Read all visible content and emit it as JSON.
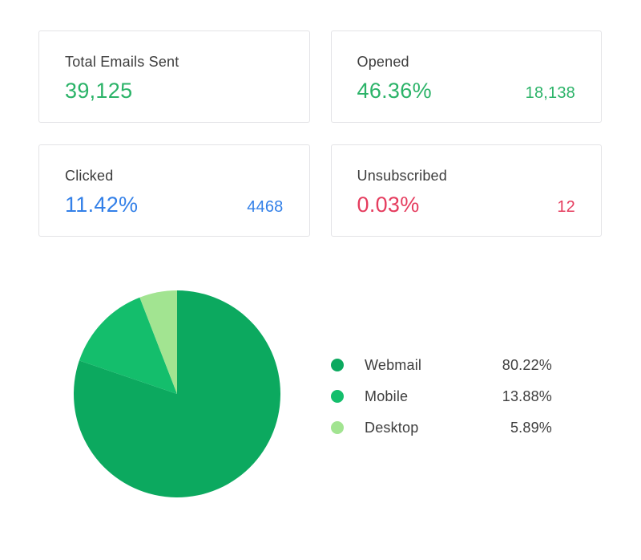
{
  "cards": [
    {
      "label": "Total Emails Sent",
      "value": "39,125",
      "count": "",
      "color": "#2bb368"
    },
    {
      "label": "Opened",
      "value": "46.36%",
      "count": "18,138",
      "color": "#2bb368"
    },
    {
      "label": "Clicked",
      "value": "11.42%",
      "count": "4468",
      "color": "#3380e8"
    },
    {
      "label": "Unsubscribed",
      "value": "0.03%",
      "count": "12",
      "color": "#e53c5e"
    }
  ],
  "colors": {
    "positive_green": "#2bb368",
    "link_blue": "#3380e8",
    "alert_red": "#e53c5e",
    "card_border": "#e3e3e6"
  },
  "chart_data": {
    "type": "pie",
    "title": "",
    "start_angle_deg": 0,
    "direction": "clockwise",
    "legend_position": "right",
    "slices": [
      {
        "label": "Webmail",
        "value": 80.22,
        "display": "80.22%",
        "color": "#0ca95f"
      },
      {
        "label": "Mobile",
        "value": 13.88,
        "display": "13.88%",
        "color": "#14be6c"
      },
      {
        "label": "Desktop",
        "value": 5.89,
        "display": "5.89%",
        "color": "#a2e491"
      }
    ]
  }
}
